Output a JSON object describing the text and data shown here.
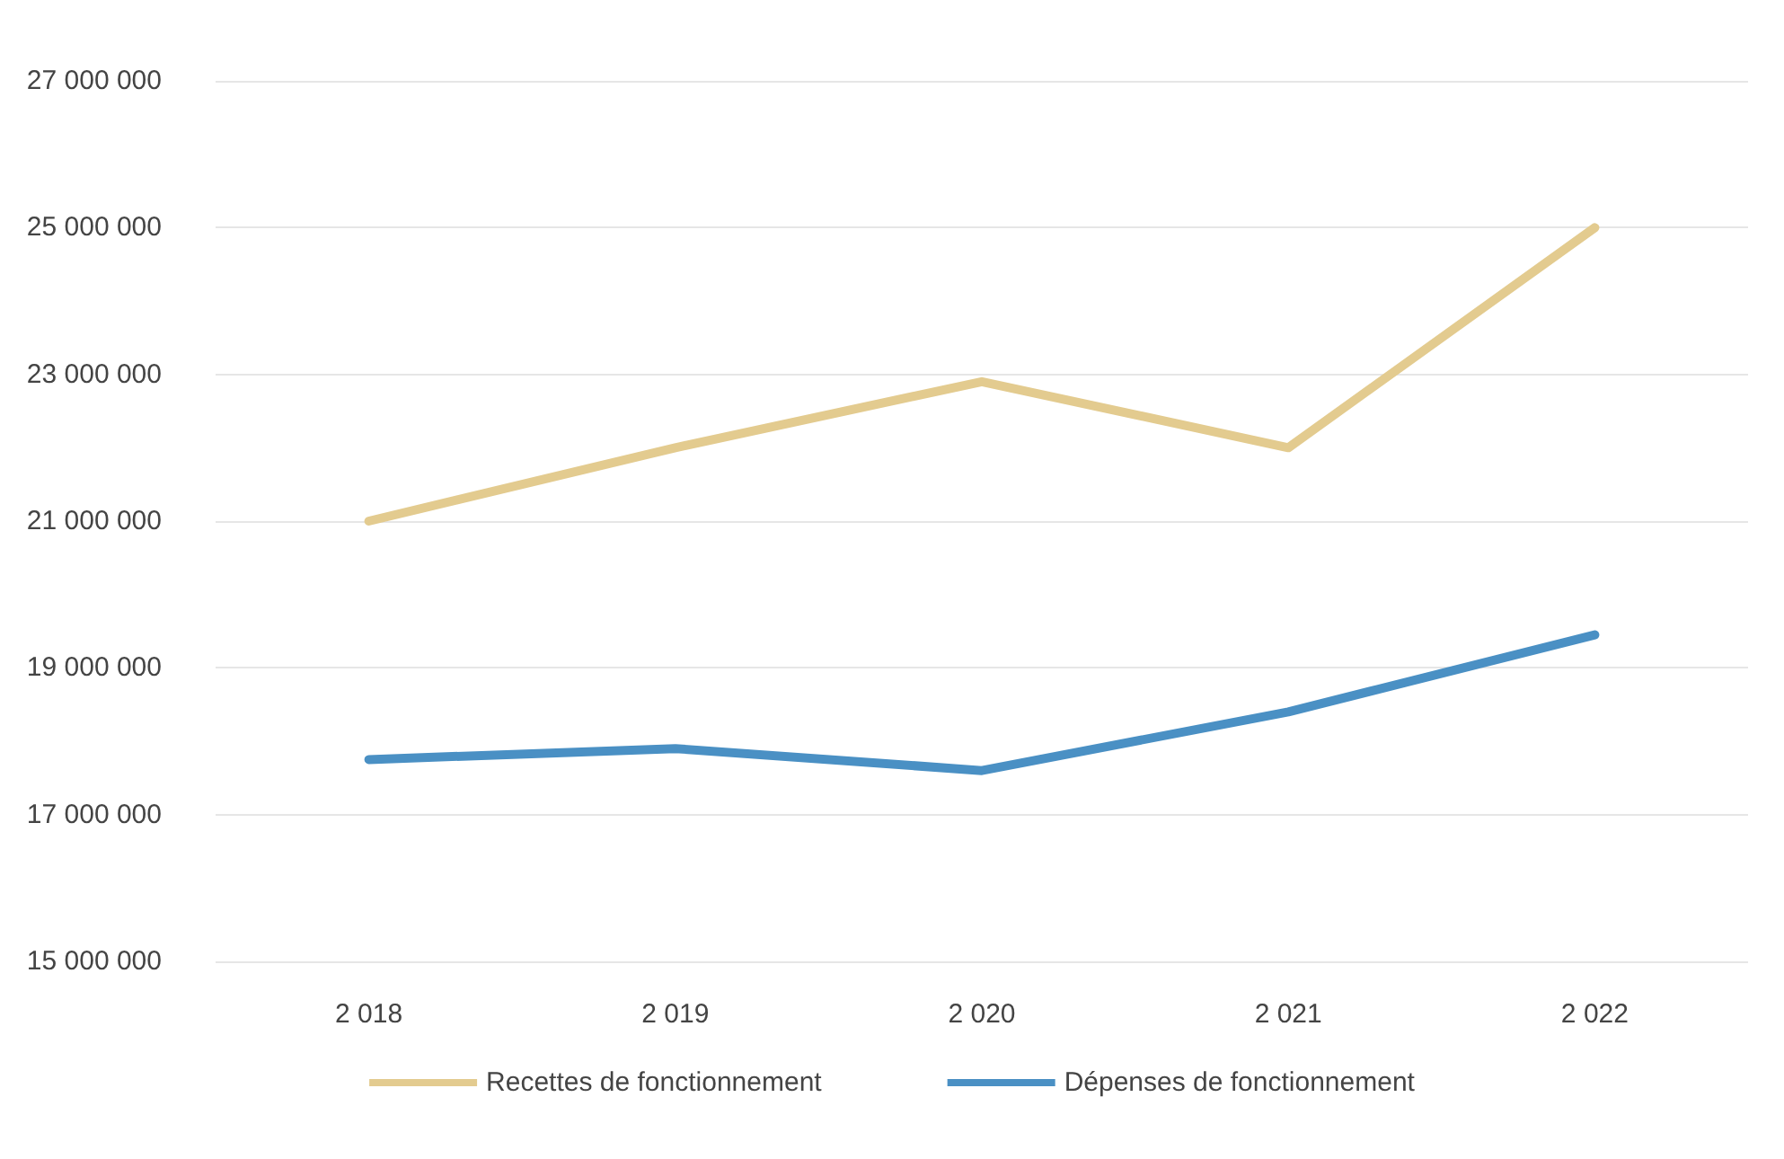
{
  "chart_data": {
    "type": "line",
    "categories": [
      "2 018",
      "2 019",
      "2 020",
      "2 021",
      "2 022"
    ],
    "series": [
      {
        "name": "Recettes de fonctionnement",
        "color": "#e3cb8f",
        "values": [
          21000000,
          22000000,
          22900000,
          22000000,
          25000000
        ]
      },
      {
        "name": "Dépenses de fonctionnement",
        "color": "#4a90c4",
        "values": [
          17750000,
          17900000,
          17600000,
          18400000,
          19450000
        ]
      }
    ],
    "ylim": [
      15000000,
      27000000
    ],
    "yticks": [
      {
        "value": 15000000,
        "label": "15 000 000"
      },
      {
        "value": 17000000,
        "label": "17 000 000"
      },
      {
        "value": 19000000,
        "label": "19 000 000"
      },
      {
        "value": 21000000,
        "label": "21 000 000"
      },
      {
        "value": 23000000,
        "label": "23 000 000"
      },
      {
        "value": 25000000,
        "label": "25 000 000"
      },
      {
        "value": 27000000,
        "label": "27 000 000"
      }
    ],
    "grid": "y",
    "legend": "bottom",
    "marker": "none",
    "line_style": "solid"
  }
}
